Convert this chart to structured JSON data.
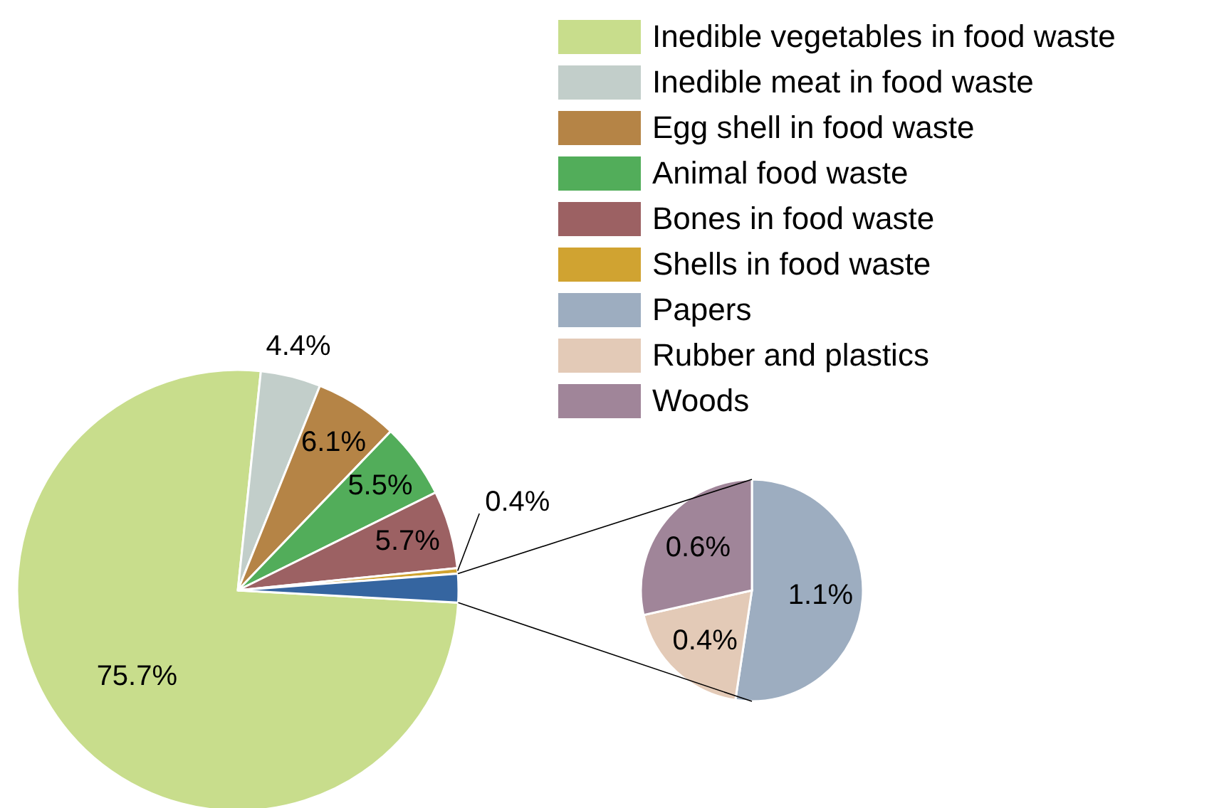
{
  "chart_data": [
    {
      "type": "pie",
      "categories": [
        "Inedible vegetables in food waste",
        "Inedible meat in food waste",
        "Egg shell in food waste",
        "Animal food waste",
        "Bones in food waste",
        "Shells in food waste",
        null
      ],
      "values": [
        75.7,
        4.4,
        6.1,
        5.5,
        5.7,
        0.4,
        2.1
      ],
      "colors": [
        "#c8dd8c",
        "#c2ceca",
        "#b58446",
        "#52ad5a",
        "#9c6163",
        "#d0a331",
        "#3565a0"
      ],
      "value_labels": [
        "75.7%",
        "4.4%",
        "6.1%",
        "5.5%",
        "5.7%",
        "0.4%",
        null
      ],
      "legend": "top right"
    },
    {
      "type": "pie",
      "categories": [
        "Papers",
        "Rubber and plastics",
        "Woods"
      ],
      "values": [
        1.1,
        0.4,
        0.6
      ],
      "colors": [
        "#9dadc0",
        "#e3cab7",
        "#a08599"
      ],
      "value_labels": [
        "1.1%",
        "0.4%",
        "0.6%"
      ],
      "legend": "top right"
    }
  ]
}
